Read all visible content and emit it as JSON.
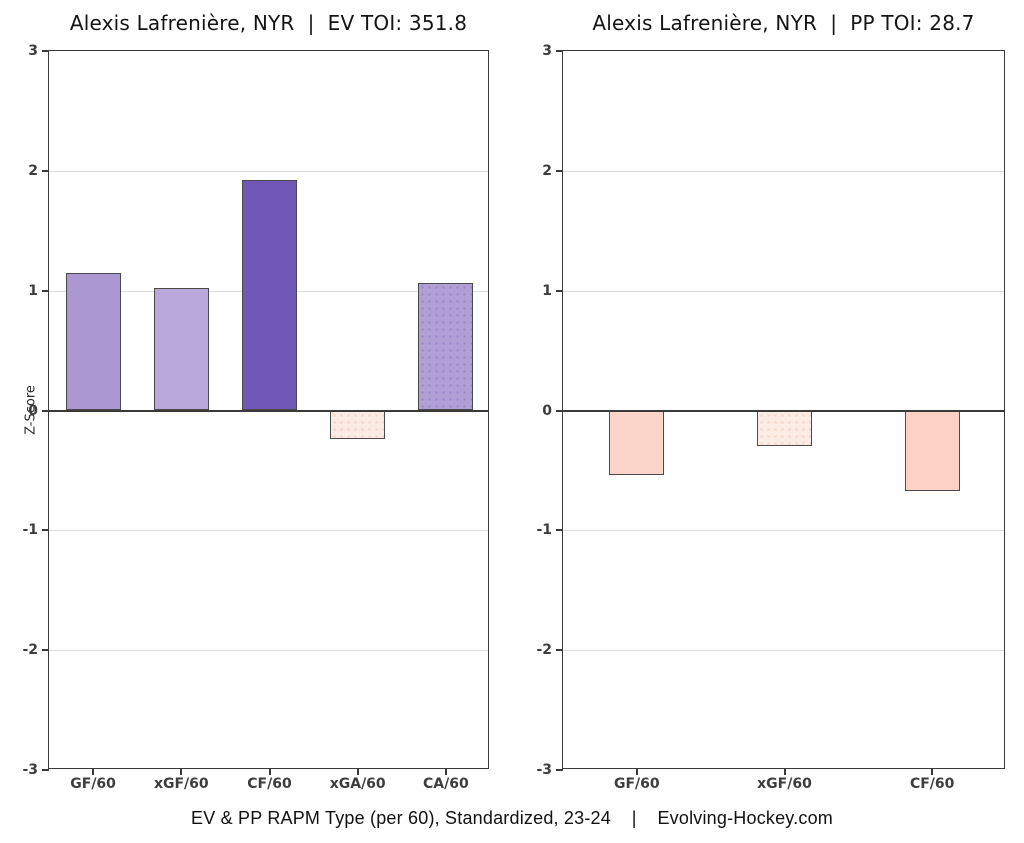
{
  "figure": {
    "background": "#ffffff",
    "caption": "EV & PP RAPM Type (per 60), Standardized, 23-24    |    Evolving-Hockey.com"
  },
  "styles": {
    "axis_text": "#3d3d3d",
    "title_text": "#141414",
    "spine": "#3a3a3a",
    "grid_line": "#dcdcdc",
    "zero_line": "#3a3a3a",
    "bar_border": "#4a4a4a"
  },
  "chart_data": [
    {
      "type": "bar",
      "title": "Alexis Lafrenière, NYR  |  EV TOI: 351.8",
      "xlabel": "",
      "ylabel": "Z-Score",
      "ylim": [
        -3,
        3
      ],
      "yticks": [
        3,
        2,
        1,
        0,
        -1,
        -2,
        -3
      ],
      "grid": true,
      "legend": false,
      "categories": [
        "GF/60",
        "xGF/60",
        "CF/60",
        "xGA/60",
        "CA/60"
      ],
      "values": [
        1.15,
        1.02,
        1.92,
        -0.24,
        1.06
      ],
      "bar_colors": [
        "#ab98d2",
        "#b9a8db",
        "#7258b6",
        "#fcebe5",
        "#b1a0d6"
      ],
      "bar_dot_colors": [
        null,
        null,
        null,
        "#f3cfc0",
        "#9885cb"
      ]
    },
    {
      "type": "bar",
      "title": "Alexis Lafrenière, NYR  |  PP TOI: 28.7",
      "xlabel": "",
      "ylabel": "",
      "ylim": [
        -3,
        3
      ],
      "yticks": [
        3,
        2,
        1,
        0,
        -1,
        -2,
        -3
      ],
      "grid": true,
      "legend": false,
      "categories": [
        "GF/60",
        "xGF/60",
        "CF/60"
      ],
      "values": [
        -0.54,
        -0.3,
        -0.67
      ],
      "bar_colors": [
        "#fbd5c9",
        "#fcece6",
        "#fdd1c3"
      ],
      "bar_dot_colors": [
        null,
        "#f6d0c0",
        null
      ]
    }
  ]
}
